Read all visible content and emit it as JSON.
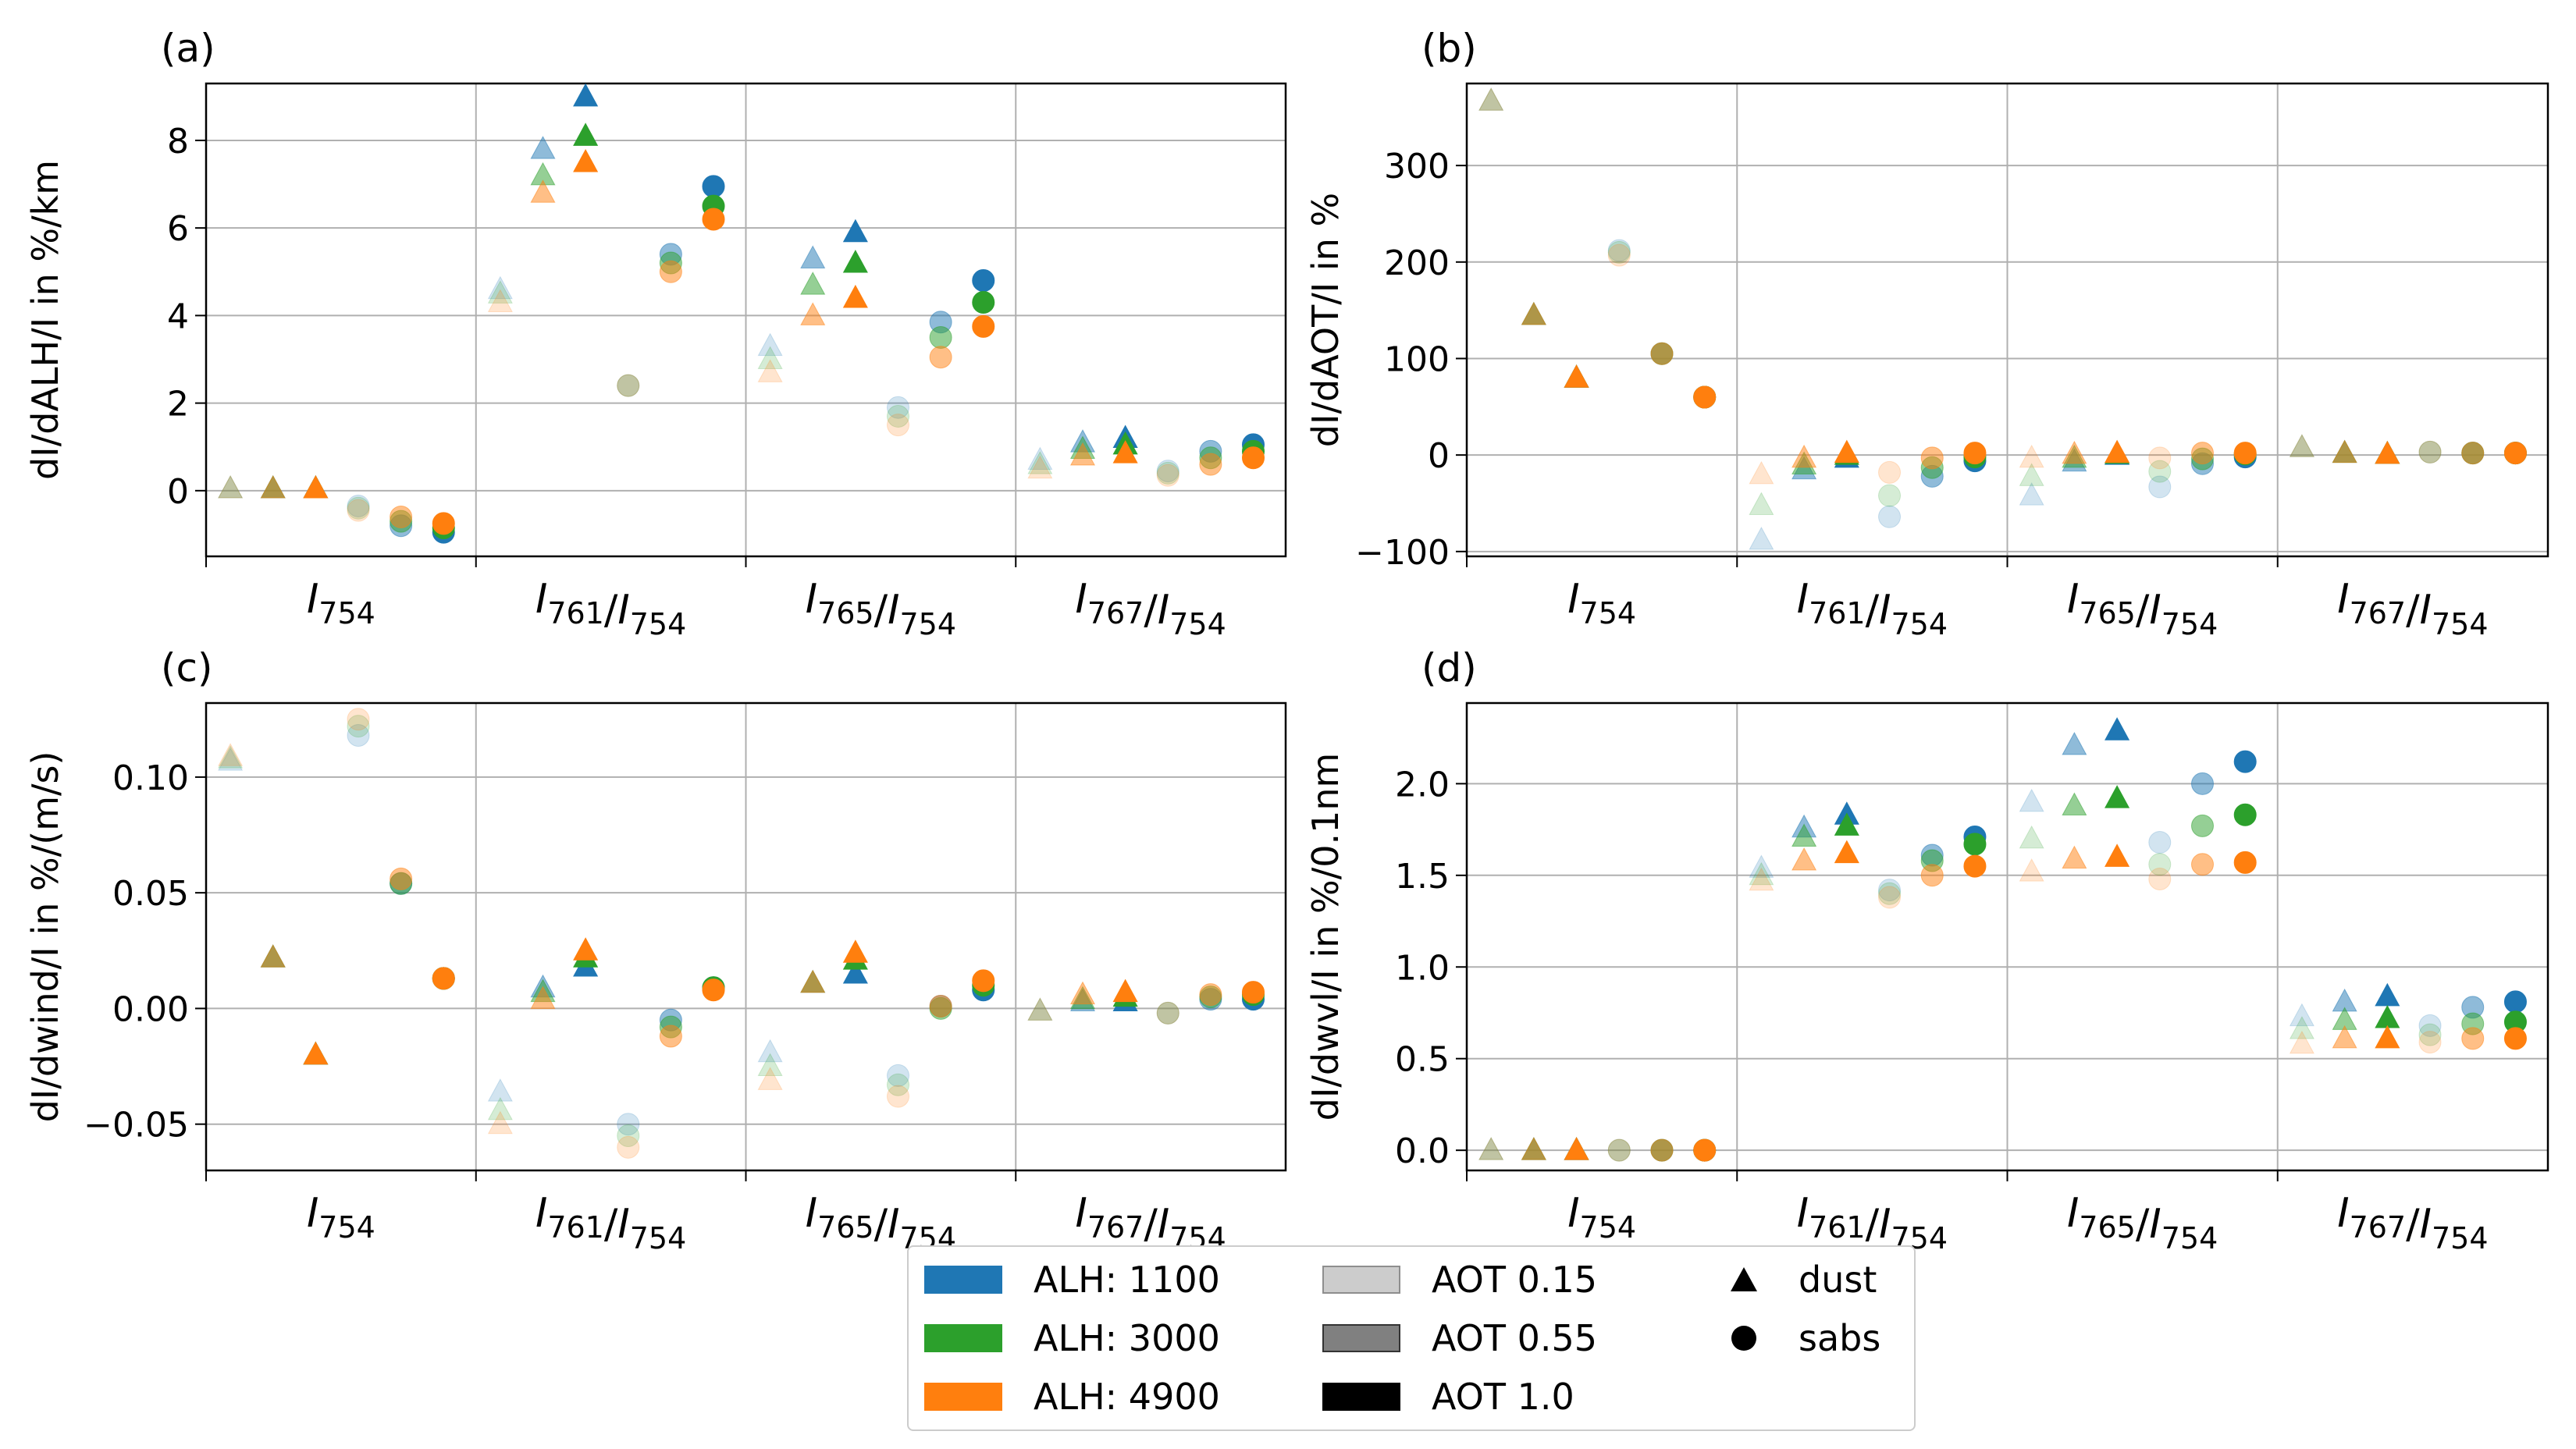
{
  "colors": {
    "ALH: 1100": "#1f77b4",
    "ALH: 3000": "#2ca02c",
    "ALH: 4900": "#ff7f0e"
  },
  "legend": {
    "alh": [
      "ALH: 1100",
      "ALH: 3000",
      "ALH: 4900"
    ],
    "aot": [
      {
        "label": "AOT 0.15",
        "alpha": 0.2
      },
      {
        "label": "AOT 0.55",
        "alpha": 0.5
      },
      {
        "label": "AOT 1.0",
        "alpha": 1.0
      }
    ],
    "shapes": [
      {
        "label": "dust",
        "marker": "triangle"
      },
      {
        "label": "sabs",
        "marker": "circle"
      }
    ]
  },
  "chart_data": [
    {
      "panel": "(a)",
      "type": "scatter",
      "ylabel": "dI/dALH/I in %/km",
      "ylim": [
        -1.5,
        9.3
      ],
      "yticks": [
        0,
        2,
        4,
        6,
        8
      ],
      "ytick_labels": [
        "0",
        "2",
        "4",
        "6",
        "8"
      ],
      "categories": [
        "I754",
        "I761/I754",
        "I765/I754",
        "I767/I754"
      ],
      "grid": true,
      "points": {
        "dust": {
          "ALH: 1100": [
            [
              0.05,
              0.05,
              0.05
            ],
            [
              4.6,
              7.8,
              9.0
            ],
            [
              3.3,
              5.3,
              5.9
            ],
            [
              0.7,
              1.1,
              1.2
            ]
          ],
          "ALH: 3000": [
            [
              0.05,
              0.05,
              0.05
            ],
            [
              4.5,
              7.2,
              8.1
            ],
            [
              3.0,
              4.7,
              5.2
            ],
            [
              0.6,
              0.95,
              1.05
            ]
          ],
          "ALH: 4900": [
            [
              0.05,
              0.05,
              0.05
            ],
            [
              4.3,
              6.8,
              7.5
            ],
            [
              2.7,
              4.0,
              4.4
            ],
            [
              0.5,
              0.8,
              0.85
            ]
          ]
        },
        "sabs": {
          "ALH: 1100": [
            [
              -0.35,
              -0.8,
              -0.95
            ],
            [
              2.4,
              5.4,
              6.95
            ],
            [
              1.9,
              3.85,
              4.8
            ],
            [
              0.45,
              0.9,
              1.05
            ]
          ],
          "ALH: 3000": [
            [
              -0.4,
              -0.7,
              -0.85
            ],
            [
              2.4,
              5.2,
              6.5
            ],
            [
              1.7,
              3.5,
              4.3
            ],
            [
              0.4,
              0.75,
              0.9
            ]
          ],
          "ALH: 4900": [
            [
              -0.45,
              -0.6,
              -0.75
            ],
            [
              2.4,
              5.0,
              6.2
            ],
            [
              1.5,
              3.05,
              3.75
            ],
            [
              0.35,
              0.6,
              0.75
            ]
          ]
        }
      }
    },
    {
      "panel": "(b)",
      "type": "scatter",
      "ylabel": "dI/dAOT/I in %",
      "ylim": [
        -105,
        385
      ],
      "yticks": [
        -100,
        0,
        100,
        200,
        300
      ],
      "ytick_labels": [
        "−100",
        "0",
        "100",
        "200",
        "300"
      ],
      "categories": [
        "I754",
        "I761/I754",
        "I765/I754",
        "I767/I754"
      ],
      "grid": true,
      "points": {
        "dust": {
          "ALH: 1100": [
            [
              367,
              145,
              80
            ],
            [
              -88,
              -15,
              -3
            ],
            [
              -42,
              -7,
              0
            ],
            [
              8,
              2,
              1
            ]
          ],
          "ALH: 3000": [
            [
              367,
              145,
              80
            ],
            [
              -52,
              -10,
              0
            ],
            [
              -22,
              -3,
              1
            ],
            [
              8,
              2,
              1
            ]
          ],
          "ALH: 4900": [
            [
              367,
              145,
              80
            ],
            [
              -20,
              -3,
              2
            ],
            [
              -3,
              1,
              2
            ],
            [
              8,
              2,
              1
            ]
          ]
        },
        "sabs": {
          "ALH: 1100": [
            [
              212,
              105,
              60
            ],
            [
              -64,
              -22,
              -6
            ],
            [
              -33,
              -9,
              -2
            ],
            [
              3,
              2,
              2
            ]
          ],
          "ALH: 3000": [
            [
              210,
              105,
              60
            ],
            [
              -42,
              -13,
              -2
            ],
            [
              -17,
              -4,
              1
            ],
            [
              3,
              2,
              2
            ]
          ],
          "ALH: 4900": [
            [
              207,
              105,
              60
            ],
            [
              -18,
              -3,
              2
            ],
            [
              -3,
              2,
              2
            ],
            [
              3,
              2,
              2
            ]
          ]
        }
      }
    },
    {
      "panel": "(c)",
      "type": "scatter",
      "ylabel": "dI/dwind/I in %/(m/s)",
      "ylim": [
        -0.07,
        0.132
      ],
      "yticks": [
        -0.05,
        0.0,
        0.05,
        0.1
      ],
      "ytick_labels": [
        "−0.05",
        "0.00",
        "0.05",
        "0.10"
      ],
      "categories": [
        "I754",
        "I761/I754",
        "I765/I754",
        "I767/I754"
      ],
      "grid": true,
      "points": {
        "dust": {
          "ALH: 1100": [
            [
              0.107,
              0.022,
              -0.02
            ],
            [
              -0.036,
              0.009,
              0.018
            ],
            [
              -0.019,
              0.011,
              0.015
            ],
            [
              -0.001,
              0.003,
              0.003
            ]
          ],
          "ALH: 3000": [
            [
              0.108,
              0.022,
              -0.02
            ],
            [
              -0.044,
              0.007,
              0.022
            ],
            [
              -0.025,
              0.011,
              0.021
            ],
            [
              -0.001,
              0.004,
              0.005
            ]
          ],
          "ALH: 4900": [
            [
              0.109,
              0.022,
              -0.02
            ],
            [
              -0.05,
              0.004,
              0.025
            ],
            [
              -0.031,
              0.011,
              0.024
            ],
            [
              -0.001,
              0.006,
              0.007
            ]
          ]
        },
        "sabs": {
          "ALH: 1100": [
            [
              0.118,
              0.054,
              0.013
            ],
            [
              -0.05,
              -0.005,
              0.009
            ],
            [
              -0.029,
              0.001,
              0.008
            ],
            [
              -0.002,
              0.004,
              0.004
            ]
          ],
          "ALH: 3000": [
            [
              0.122,
              0.054,
              0.013
            ],
            [
              -0.055,
              -0.008,
              0.009
            ],
            [
              -0.033,
              0.0,
              0.01
            ],
            [
              -0.002,
              0.005,
              0.006
            ]
          ],
          "ALH: 4900": [
            [
              0.125,
              0.056,
              0.013
            ],
            [
              -0.06,
              -0.012,
              0.008
            ],
            [
              -0.038,
              0.001,
              0.012
            ],
            [
              -0.002,
              0.006,
              0.007
            ]
          ]
        }
      }
    },
    {
      "panel": "(d)",
      "type": "scatter",
      "ylabel": "dI/dwvl/I in %/0.1nm",
      "ylim": [
        -0.11,
        2.44
      ],
      "yticks": [
        0.0,
        0.5,
        1.0,
        1.5,
        2.0
      ],
      "ytick_labels": [
        "0.0",
        "0.5",
        "1.0",
        "1.5",
        "2.0"
      ],
      "categories": [
        "I754",
        "I761/I754",
        "I765/I754",
        "I767/I754"
      ],
      "grid": true,
      "points": {
        "dust": {
          "ALH: 1100": [
            [
              0.0,
              0.0,
              0.0
            ],
            [
              1.54,
              1.76,
              1.83
            ],
            [
              1.9,
              2.21,
              2.29
            ],
            [
              0.73,
              0.81,
              0.84
            ]
          ],
          "ALH: 3000": [
            [
              0.0,
              0.0,
              0.0
            ],
            [
              1.5,
              1.71,
              1.77
            ],
            [
              1.7,
              1.88,
              1.92
            ],
            [
              0.66,
              0.71,
              0.72
            ]
          ],
          "ALH: 4900": [
            [
              0.0,
              0.0,
              0.0
            ],
            [
              1.47,
              1.58,
              1.62
            ],
            [
              1.52,
              1.59,
              1.6
            ],
            [
              0.58,
              0.61,
              0.61
            ]
          ]
        },
        "sabs": {
          "ALH: 1100": [
            [
              0.0,
              0.0,
              0.0
            ],
            [
              1.42,
              1.61,
              1.71
            ],
            [
              1.68,
              2.0,
              2.12
            ],
            [
              0.68,
              0.78,
              0.81
            ]
          ],
          "ALH: 3000": [
            [
              0.0,
              0.0,
              0.0
            ],
            [
              1.4,
              1.58,
              1.67
            ],
            [
              1.56,
              1.77,
              1.83
            ],
            [
              0.63,
              0.69,
              0.7
            ]
          ],
          "ALH: 4900": [
            [
              0.0,
              0.0,
              0.0
            ],
            [
              1.38,
              1.5,
              1.55
            ],
            [
              1.48,
              1.56,
              1.57
            ],
            [
              0.59,
              0.61,
              0.61
            ]
          ]
        }
      }
    }
  ]
}
